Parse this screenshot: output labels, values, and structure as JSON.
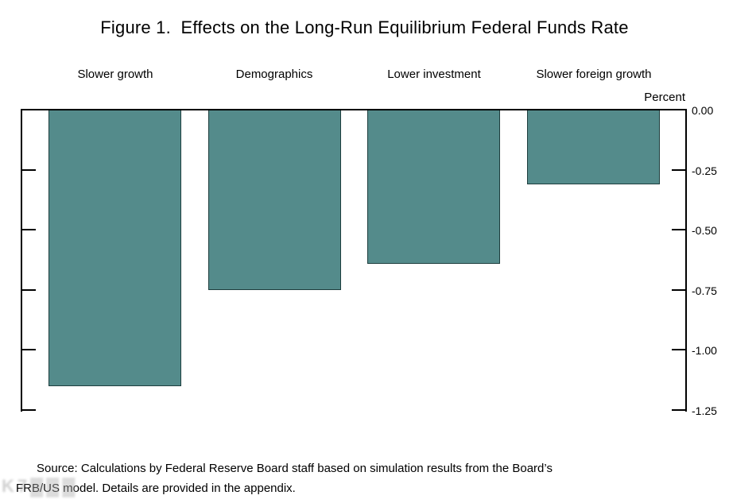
{
  "title": "Figure 1.  Effects on the Long-Run Equilibrium Federal Funds Rate",
  "chart_data": {
    "type": "bar",
    "title": "Figure 1.  Effects on the Long-Run Equilibrium Federal Funds Rate",
    "categories": [
      "Slower growth",
      "Demographics",
      "Lower investment",
      "Slower foreign growth"
    ],
    "values": [
      -1.15,
      -0.75,
      -0.64,
      -0.31
    ],
    "xlabel": "",
    "ylabel": "Percent",
    "ylim": [
      -1.25,
      0
    ],
    "ytick_labels": [
      "0.00",
      "-0.25",
      "-0.50",
      "-0.75",
      "-1.00",
      "-1.25"
    ],
    "ytick_values": [
      0,
      -0.25,
      -0.5,
      -0.75,
      -1.0,
      -1.25
    ],
    "grid": false,
    "legend_position": "none",
    "bar_color": "#548b8b",
    "bar_border_color": "#1e3e3e",
    "axis_color": "#000000"
  },
  "axis": {
    "unit_label": "Percent"
  },
  "source": {
    "line1": "Source:  Calculations by Federal Reserve Board staff based on simulation results from the Board’s",
    "line2": "FRB/US model.  Details are provided in the appendix."
  },
  "watermark": {
    "text": "K7▓▓▓"
  }
}
